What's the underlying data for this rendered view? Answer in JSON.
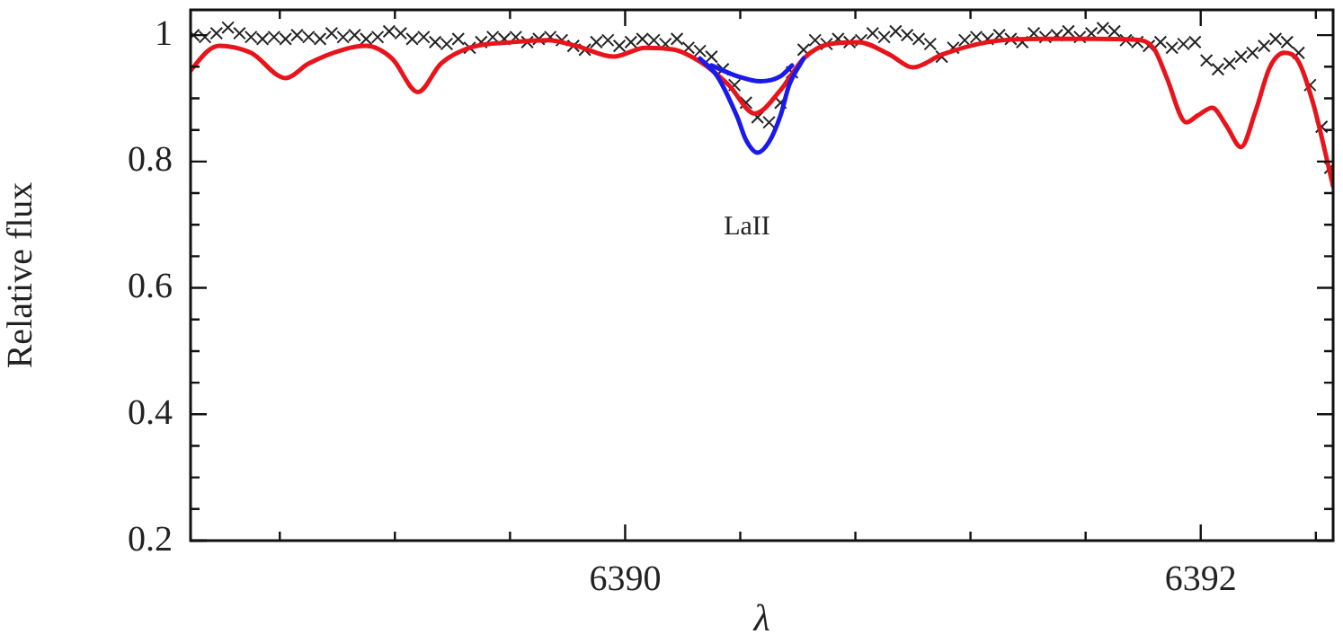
{
  "chart_data": {
    "type": "line",
    "xlabel": "λ",
    "ylabel": "Relative flux",
    "xlim": [
      6388.49,
      6392.46
    ],
    "ylim": [
      0.2,
      1.04
    ],
    "xticks": [
      {
        "value": 6388.8,
        "label": null
      },
      {
        "value": 6389.2,
        "label": null
      },
      {
        "value": 6389.6,
        "label": null
      },
      6390,
      {
        "value": 6390.4,
        "label": null
      },
      {
        "value": 6390.8,
        "label": null
      },
      {
        "value": 6391.2,
        "label": null
      },
      {
        "value": 6391.6,
        "label": null
      },
      6392,
      {
        "value": 6392.4,
        "label": null
      }
    ],
    "yticks": [
      0.2,
      {
        "value": 0.25,
        "label": null
      },
      {
        "value": 0.3,
        "label": null
      },
      {
        "value": 0.35,
        "label": null
      },
      0.4,
      {
        "value": 0.45,
        "label": null
      },
      {
        "value": 0.5,
        "label": null
      },
      {
        "value": 0.55,
        "label": null
      },
      0.6,
      {
        "value": 0.65,
        "label": null
      },
      {
        "value": 0.7,
        "label": null
      },
      {
        "value": 0.75,
        "label": null
      },
      0.8,
      {
        "value": 0.85,
        "label": null
      },
      {
        "value": 0.9,
        "label": null
      },
      {
        "value": 0.95,
        "label": null
      },
      1
    ],
    "annotations": [
      "LaII"
    ],
    "series": [
      {
        "color": "#1a1aeb",
        "x": [
          6390.26,
          6390.32,
          6390.39,
          6390.42,
          6390.46,
          6390.5,
          6390.54,
          6390.57,
          6390.62
        ],
        "values": [
          0.963,
          0.935,
          0.87,
          0.834,
          0.814,
          0.831,
          0.873,
          0.921,
          0.963
        ]
      },
      {
        "color": "#1a1aeb",
        "x": [
          6390.3,
          6390.39,
          6390.47,
          6390.54,
          6390.58
        ],
        "values": [
          0.952,
          0.935,
          0.927,
          0.935,
          0.952
        ]
      },
      {
        "color": "#e8141c",
        "x": [
          6388.49,
          6388.55,
          6388.59,
          6388.7,
          6388.82,
          6388.9,
          6389.02,
          6389.1,
          6389.19,
          6389.28,
          6389.36,
          6389.46,
          6389.61,
          6389.73,
          6389.83,
          6389.96,
          6390.07,
          6390.17,
          6390.26,
          6390.36,
          6390.45,
          6390.54,
          6390.62,
          6390.71,
          6390.81,
          6390.92,
          6391.0,
          6391.1,
          6391.26,
          6391.45,
          6391.63,
          6391.79,
          6391.84,
          6391.88,
          6391.95,
          6391.99,
          6392.04,
          6392.09,
          6392.14,
          6392.19,
          6392.24,
          6392.29,
          6392.34,
          6392.39,
          6392.46
        ],
        "values": [
          0.944,
          0.975,
          0.983,
          0.972,
          0.932,
          0.955,
          0.977,
          0.983,
          0.963,
          0.91,
          0.955,
          0.98,
          0.989,
          0.992,
          0.983,
          0.966,
          0.98,
          0.977,
          0.958,
          0.921,
          0.876,
          0.913,
          0.963,
          0.986,
          0.989,
          0.969,
          0.949,
          0.969,
          0.989,
          0.994,
          0.994,
          0.992,
          0.977,
          0.935,
          0.862,
          0.873,
          0.885,
          0.856,
          0.823,
          0.879,
          0.949,
          0.972,
          0.958,
          0.893,
          0.761
        ]
      },
      {
        "type": "scatter",
        "marker": "cross",
        "color": "#222222",
        "x": [
          6388.5,
          6388.54,
          6388.58,
          6388.62,
          6388.66,
          6388.7,
          6388.74,
          6388.78,
          6388.82,
          6388.86,
          6388.9,
          6388.94,
          6388.98,
          6389.02,
          6389.06,
          6389.1,
          6389.14,
          6389.18,
          6389.22,
          6389.26,
          6389.3,
          6389.34,
          6389.38,
          6389.42,
          6389.46,
          6389.5,
          6389.54,
          6389.58,
          6389.62,
          6389.66,
          6389.7,
          6389.74,
          6389.78,
          6389.82,
          6389.86,
          6389.9,
          6389.94,
          6389.98,
          6390.02,
          6390.06,
          6390.1,
          6390.14,
          6390.18,
          6390.22,
          6390.26,
          6390.3,
          6390.34,
          6390.38,
          6390.42,
          6390.46,
          6390.5,
          6390.54,
          6390.58,
          6390.62,
          6390.66,
          6390.7,
          6390.74,
          6390.78,
          6390.82,
          6390.86,
          6390.9,
          6390.94,
          6390.98,
          6391.02,
          6391.06,
          6391.1,
          6391.14,
          6391.18,
          6391.22,
          6391.26,
          6391.3,
          6391.34,
          6391.38,
          6391.42,
          6391.46,
          6391.5,
          6391.54,
          6391.58,
          6391.62,
          6391.66,
          6391.7,
          6391.74,
          6391.78,
          6391.82,
          6391.86,
          6391.9,
          6391.94,
          6391.98,
          6392.02,
          6392.06,
          6392.1,
          6392.14,
          6392.18,
          6392.22,
          6392.26,
          6392.3,
          6392.34,
          6392.38,
          6392.42,
          6392.45
        ],
        "values": [
          1.0,
          0.997,
          1.003,
          1.012,
          1.003,
          0.997,
          0.994,
          0.997,
          0.994,
          1.0,
          0.997,
          0.994,
          1.003,
          0.997,
          1.0,
          0.994,
          0.997,
          1.006,
          1.003,
          0.994,
          0.997,
          0.989,
          0.986,
          0.994,
          0.98,
          0.989,
          0.997,
          0.994,
          0.997,
          0.989,
          0.994,
          0.997,
          0.992,
          0.983,
          0.977,
          0.989,
          0.992,
          0.983,
          0.989,
          0.994,
          0.992,
          0.986,
          0.994,
          0.98,
          0.975,
          0.966,
          0.946,
          0.921,
          0.893,
          0.87,
          0.862,
          0.893,
          0.941,
          0.977,
          0.992,
          0.986,
          0.994,
          0.989,
          0.992,
          1.003,
          0.997,
          1.006,
          1.0,
          0.994,
          0.986,
          0.966,
          0.98,
          0.992,
          0.997,
          0.994,
          1.0,
          0.994,
          0.989,
          1.003,
          0.997,
          1.0,
          1.006,
          0.997,
          1.003,
          1.011,
          1.006,
          0.992,
          0.989,
          0.983,
          0.989,
          0.98,
          0.986,
          0.989,
          0.96,
          0.946,
          0.955,
          0.966,
          0.972,
          0.983,
          0.994,
          0.989,
          0.972,
          0.921,
          0.855,
          0.79
        ]
      }
    ]
  }
}
